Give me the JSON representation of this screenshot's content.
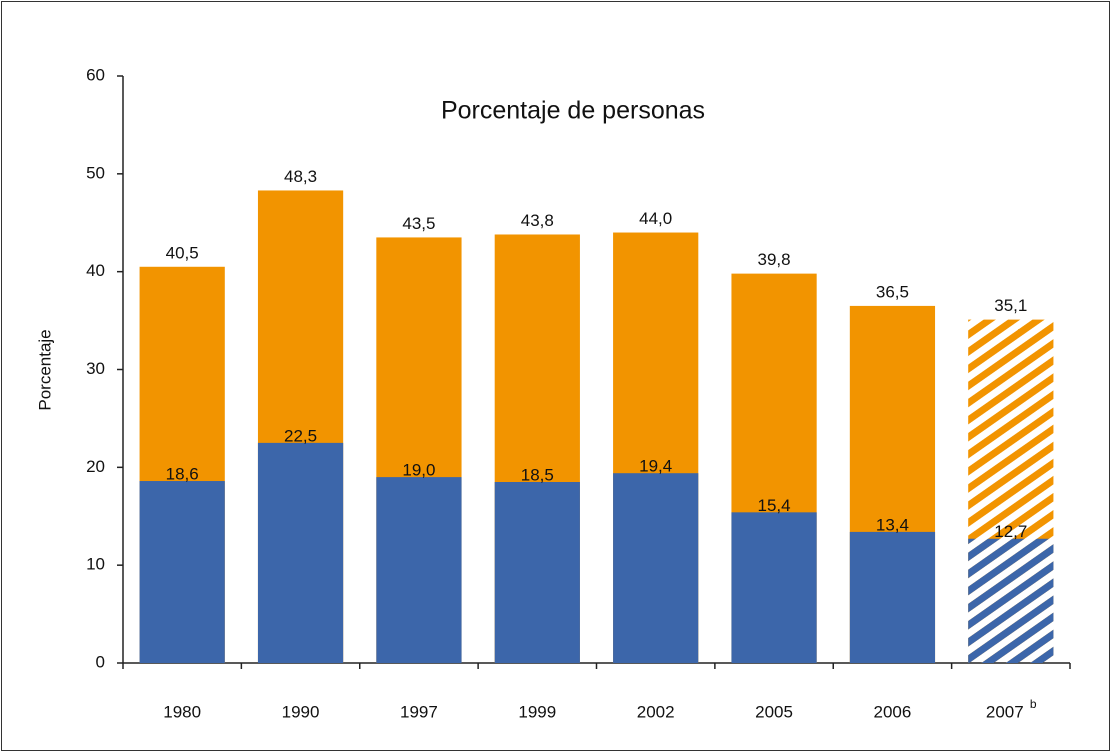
{
  "chart_data": {
    "type": "bar",
    "title": "Porcentaje de personas",
    "y_label": "Porcentaje",
    "categories": [
      "1980",
      "1990",
      "1997",
      "1999",
      "2002",
      "2005",
      "2006",
      "2007"
    ],
    "category_superscripts": [
      null,
      null,
      null,
      null,
      null,
      null,
      null,
      "b"
    ],
    "hatched": [
      false,
      false,
      false,
      false,
      false,
      false,
      false,
      true
    ],
    "series": [
      {
        "color": "#f29400",
        "values": [
          40.5,
          48.3,
          43.5,
          43.8,
          44.0,
          39.8,
          36.5,
          35.1
        ],
        "value_labels": [
          "40,5",
          "48,3",
          "43,5",
          "43,8",
          "44,0",
          "39,8",
          "36,5",
          "35,1"
        ]
      },
      {
        "color": "#3c66aa",
        "values": [
          18.6,
          22.5,
          19.0,
          18.5,
          19.4,
          15.4,
          13.4,
          12.7
        ],
        "value_labels": [
          "18,6",
          "22,5",
          "19,0",
          "18,5",
          "19,4",
          "15,4",
          "13,4",
          "12,7"
        ]
      }
    ],
    "ylim": [
      0,
      60
    ],
    "yticks": [
      0,
      10,
      20,
      30,
      40,
      50,
      60
    ],
    "grid": false
  }
}
